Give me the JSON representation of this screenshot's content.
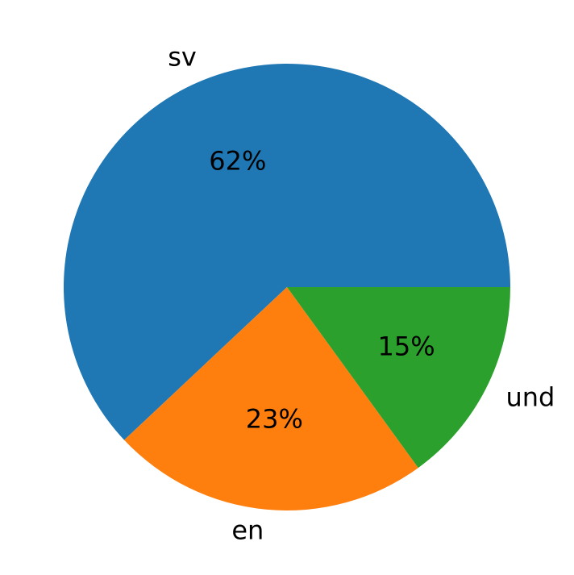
{
  "chart_data": {
    "type": "pie",
    "categories": [
      "sv",
      "en",
      "und"
    ],
    "values": [
      62,
      23,
      15
    ],
    "value_labels": [
      "62%",
      "23%",
      "15%"
    ],
    "colors": [
      "#1f77b4",
      "#ff7f0e",
      "#2ca02c"
    ]
  }
}
